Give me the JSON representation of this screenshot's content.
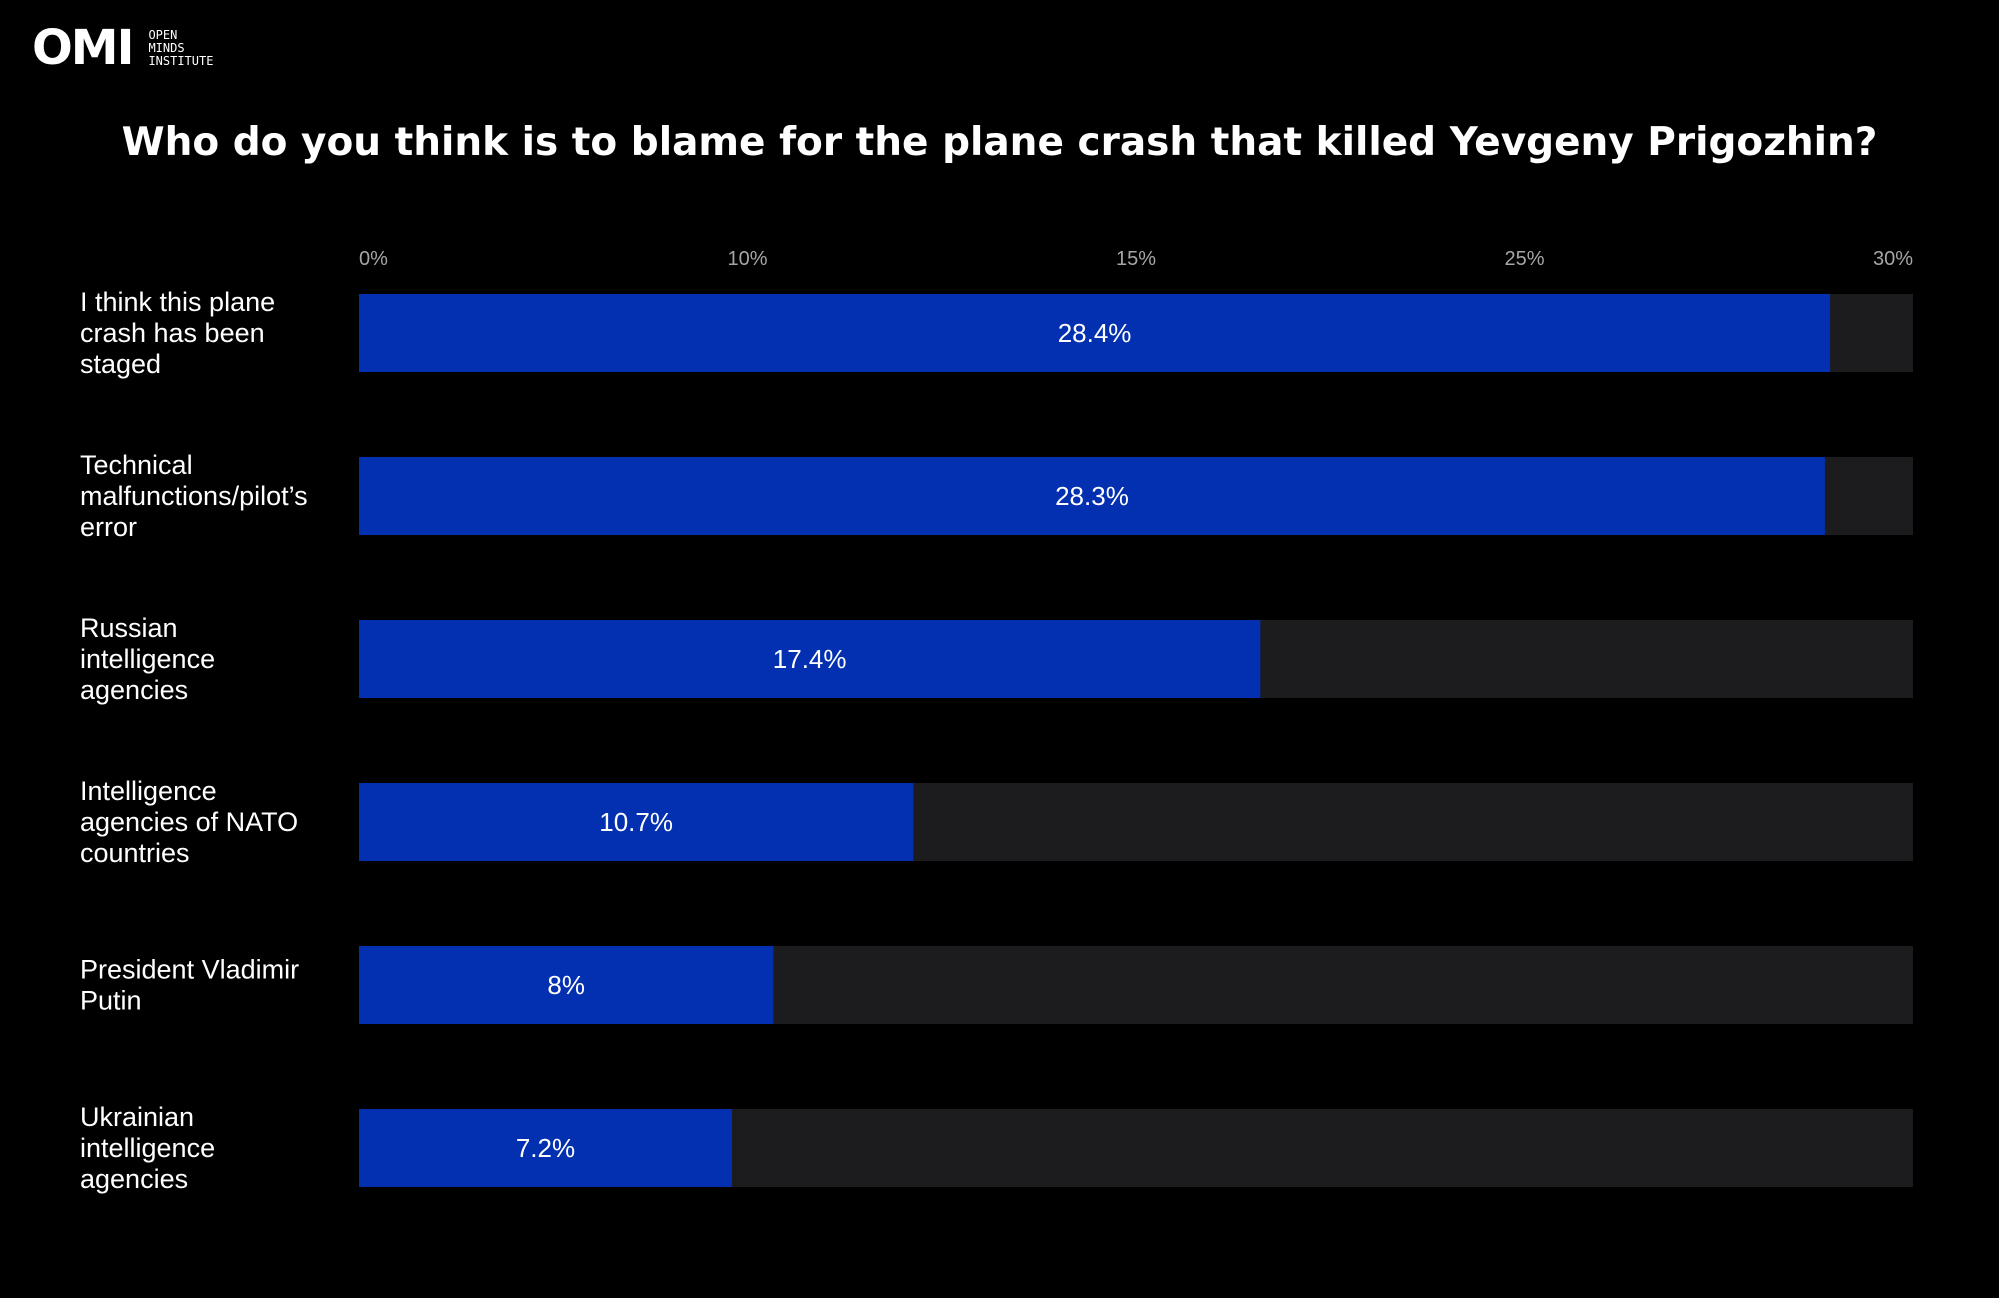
{
  "logo": {
    "mark": "OMI",
    "lines": [
      "OPEN",
      "MINDS",
      "INSTITUTE"
    ]
  },
  "colors": {
    "background": "#000000",
    "bar": "#0330b1",
    "track": "#1c1b1e",
    "tick": "#a6a6a6"
  },
  "chart_data": {
    "type": "bar",
    "orientation": "horizontal",
    "title": "Who do you think is to blame for the plane crash that killed Yevgeny Prigozhin?",
    "tick_labels": [
      "0%",
      "10%",
      "15%",
      "25%",
      "30%"
    ],
    "categories": [
      [
        "I think this plane",
        "crash has been",
        "staged"
      ],
      [
        "Technical",
        "malfunctions/pilot’s",
        "error"
      ],
      [
        "Russian",
        "intelligence",
        "agencies"
      ],
      [
        "Intelligence",
        "agencies of NATO",
        "countries"
      ],
      [
        "President Vladimir",
        "Putin"
      ],
      [
        "Ukrainian",
        "intelligence",
        "agencies"
      ]
    ],
    "values": [
      28.4,
      28.3,
      17.4,
      10.7,
      8,
      7.2
    ],
    "value_labels": [
      "28.4%",
      "28.3%",
      "17.4%",
      "10.7%",
      "8%",
      "7.2%"
    ],
    "xlim": [
      0,
      30
    ],
    "grid": false,
    "legend": "none"
  }
}
